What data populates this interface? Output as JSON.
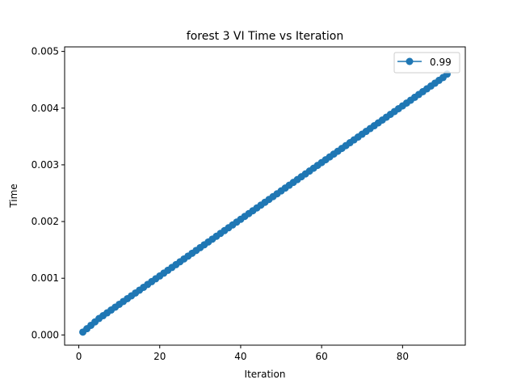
{
  "chart_data": {
    "type": "line",
    "title": "forest 3 VI Time vs Iteration",
    "xlabel": "Iteration",
    "ylabel": "Time",
    "xlim": [
      -3.5,
      95.5
    ],
    "ylim": [
      -0.00018,
      0.00508
    ],
    "x_ticks": [
      0,
      20,
      40,
      60,
      80
    ],
    "x_tick_labels": [
      "0",
      "20",
      "40",
      "60",
      "80"
    ],
    "y_ticks": [
      0.0,
      0.001,
      0.002,
      0.003,
      0.004,
      0.005
    ],
    "y_tick_labels": [
      "0.000",
      "0.001",
      "0.002",
      "0.003",
      "0.004",
      "0.005"
    ],
    "grid": false,
    "legend_position": "top-right",
    "color": "#1f77b4",
    "marker": "circle",
    "series": [
      {
        "name": "0.99",
        "x": [
          1,
          2,
          3,
          4,
          5,
          6,
          7,
          8,
          9,
          10,
          11,
          12,
          13,
          14,
          15,
          16,
          17,
          18,
          19,
          20,
          21,
          22,
          23,
          24,
          25,
          26,
          27,
          28,
          29,
          30,
          31,
          32,
          33,
          34,
          35,
          36,
          37,
          38,
          39,
          40,
          41,
          42,
          43,
          44,
          45,
          46,
          47,
          48,
          49,
          50,
          51,
          52,
          53,
          54,
          55,
          56,
          57,
          58,
          59,
          60,
          61,
          62,
          63,
          64,
          65,
          66,
          67,
          68,
          69,
          70,
          71,
          72,
          73,
          74,
          75,
          76,
          77,
          78,
          79,
          80,
          81,
          82,
          83,
          84,
          85,
          86,
          87,
          88,
          89,
          90,
          91
        ],
        "y": [
          5e-05,
          0.00011,
          0.00017,
          0.00023,
          0.00029,
          0.00034,
          0.00039,
          0.00044,
          0.00049,
          0.00054,
          0.00059,
          0.00064,
          0.00069,
          0.00074,
          0.00079,
          0.00084,
          0.00089,
          0.00094,
          0.00099,
          0.00104,
          0.00109,
          0.00114,
          0.00119,
          0.00124,
          0.00129,
          0.00134,
          0.00139,
          0.00144,
          0.00149,
          0.00154,
          0.00159,
          0.00164,
          0.00169,
          0.00174,
          0.00179,
          0.00184,
          0.00189,
          0.00194,
          0.00199,
          0.00204,
          0.00209,
          0.00214,
          0.00219,
          0.00224,
          0.00229,
          0.00234,
          0.00239,
          0.00244,
          0.00249,
          0.00254,
          0.00259,
          0.00264,
          0.00269,
          0.00274,
          0.00279,
          0.00284,
          0.00289,
          0.00294,
          0.00299,
          0.00304,
          0.00309,
          0.00314,
          0.00319,
          0.00324,
          0.00329,
          0.00334,
          0.00339,
          0.00344,
          0.00349,
          0.00354,
          0.00359,
          0.00364,
          0.00369,
          0.00374,
          0.00379,
          0.00384,
          0.00389,
          0.00394,
          0.00399,
          0.00404,
          0.00409,
          0.00414,
          0.00419,
          0.00424,
          0.00429,
          0.00434,
          0.00439,
          0.00444,
          0.00449,
          0.00454,
          0.0046
        ]
      }
    ]
  }
}
